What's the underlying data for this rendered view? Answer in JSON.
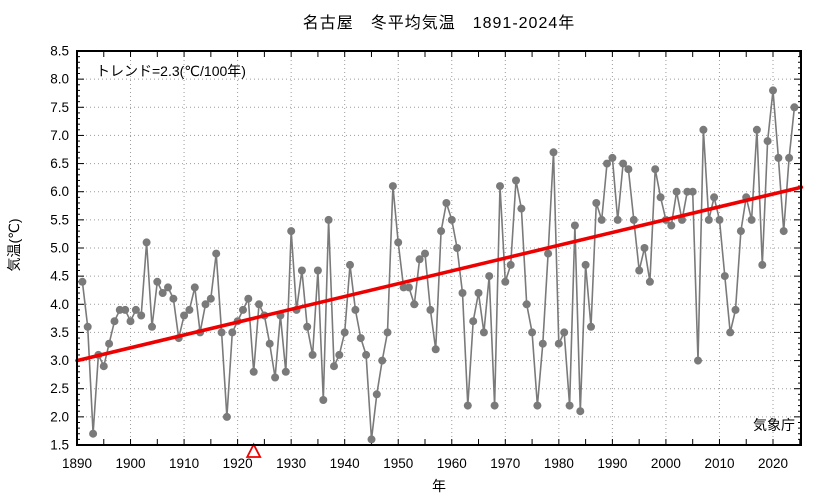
{
  "annotations": {
    "trend_label": "トレンド=2.3(℃/100年)",
    "agency": "気象庁"
  },
  "colors": {
    "series": "#7a7a7a",
    "trend": "#ee0000",
    "grid": "#9b9b9b",
    "frame": "#000000",
    "triangle": "#ee0000",
    "background": "#ffffff",
    "text": "#000000"
  },
  "chart_data": {
    "type": "line",
    "title": "名古屋　冬平均気温　1891-2024年",
    "xlabel": "年",
    "ylabel": "気温(℃)",
    "xlim": [
      1890,
      2025.3
    ],
    "ylim": [
      1.5,
      8.5
    ],
    "grid": true,
    "x_tick_labels": [
      "1890",
      "1900",
      "1910",
      "1920",
      "1930",
      "1940",
      "1950",
      "1960",
      "1970",
      "1980",
      "1990",
      "2000",
      "2010",
      "2020"
    ],
    "y_tick_labels": [
      "1.5",
      "2.0",
      "2.5",
      "3.0",
      "3.5",
      "4.0",
      "4.5",
      "5.0",
      "5.5",
      "6.0",
      "6.5",
      "7.0",
      "7.5",
      "8.0",
      "8.5"
    ],
    "series": [
      {
        "name": "冬平均気温",
        "start_year": 1891,
        "end_year": 2024,
        "values": [
          4.4,
          3.6,
          1.7,
          3.1,
          2.9,
          3.3,
          3.7,
          3.9,
          3.9,
          3.7,
          3.9,
          3.8,
          5.1,
          3.6,
          4.4,
          4.2,
          4.3,
          4.1,
          3.4,
          3.8,
          3.9,
          4.3,
          3.5,
          4.0,
          4.1,
          4.9,
          3.5,
          2.0,
          3.5,
          3.7,
          3.9,
          4.1,
          2.8,
          4.0,
          3.8,
          3.3,
          2.7,
          3.8,
          2.8,
          5.3,
          3.9,
          4.6,
          3.6,
          3.1,
          4.6,
          2.3,
          5.5,
          2.9,
          3.1,
          3.5,
          4.7,
          3.9,
          3.4,
          3.1,
          1.6,
          2.4,
          3.0,
          3.5,
          6.1,
          5.1,
          4.3,
          4.3,
          4.0,
          4.8,
          4.9,
          3.9,
          3.2,
          5.3,
          5.8,
          5.5,
          5.0,
          4.2,
          2.2,
          3.7,
          4.2,
          3.5,
          4.5,
          2.2,
          6.1,
          4.4,
          4.7,
          6.2,
          5.7,
          4.0,
          3.5,
          2.2,
          3.3,
          4.9,
          6.7,
          3.3,
          3.5,
          2.2,
          5.4,
          2.1,
          4.7,
          3.6,
          5.8,
          5.5,
          6.5,
          6.6,
          5.5,
          6.5,
          6.4,
          5.5,
          4.6,
          5.0,
          4.4,
          6.4,
          5.9,
          5.5,
          5.4,
          6.0,
          5.5,
          6.0,
          6.0,
          3.0,
          7.1,
          5.5,
          5.9,
          5.5,
          4.5,
          3.5,
          3.9,
          5.3,
          5.9,
          5.5,
          7.1,
          4.7,
          6.9,
          7.8,
          6.6,
          5.3,
          6.6,
          7.5
        ]
      }
    ],
    "trend": {
      "label": "トレンド=2.3(℃/100年)",
      "rate_c_per_100yr": 2.3,
      "x1": 1890,
      "y1": 3.0,
      "x2": 2025.3,
      "y2": 6.08
    },
    "station_move_marker": {
      "year": 1923,
      "symbol": "open-triangle"
    },
    "legend": []
  }
}
